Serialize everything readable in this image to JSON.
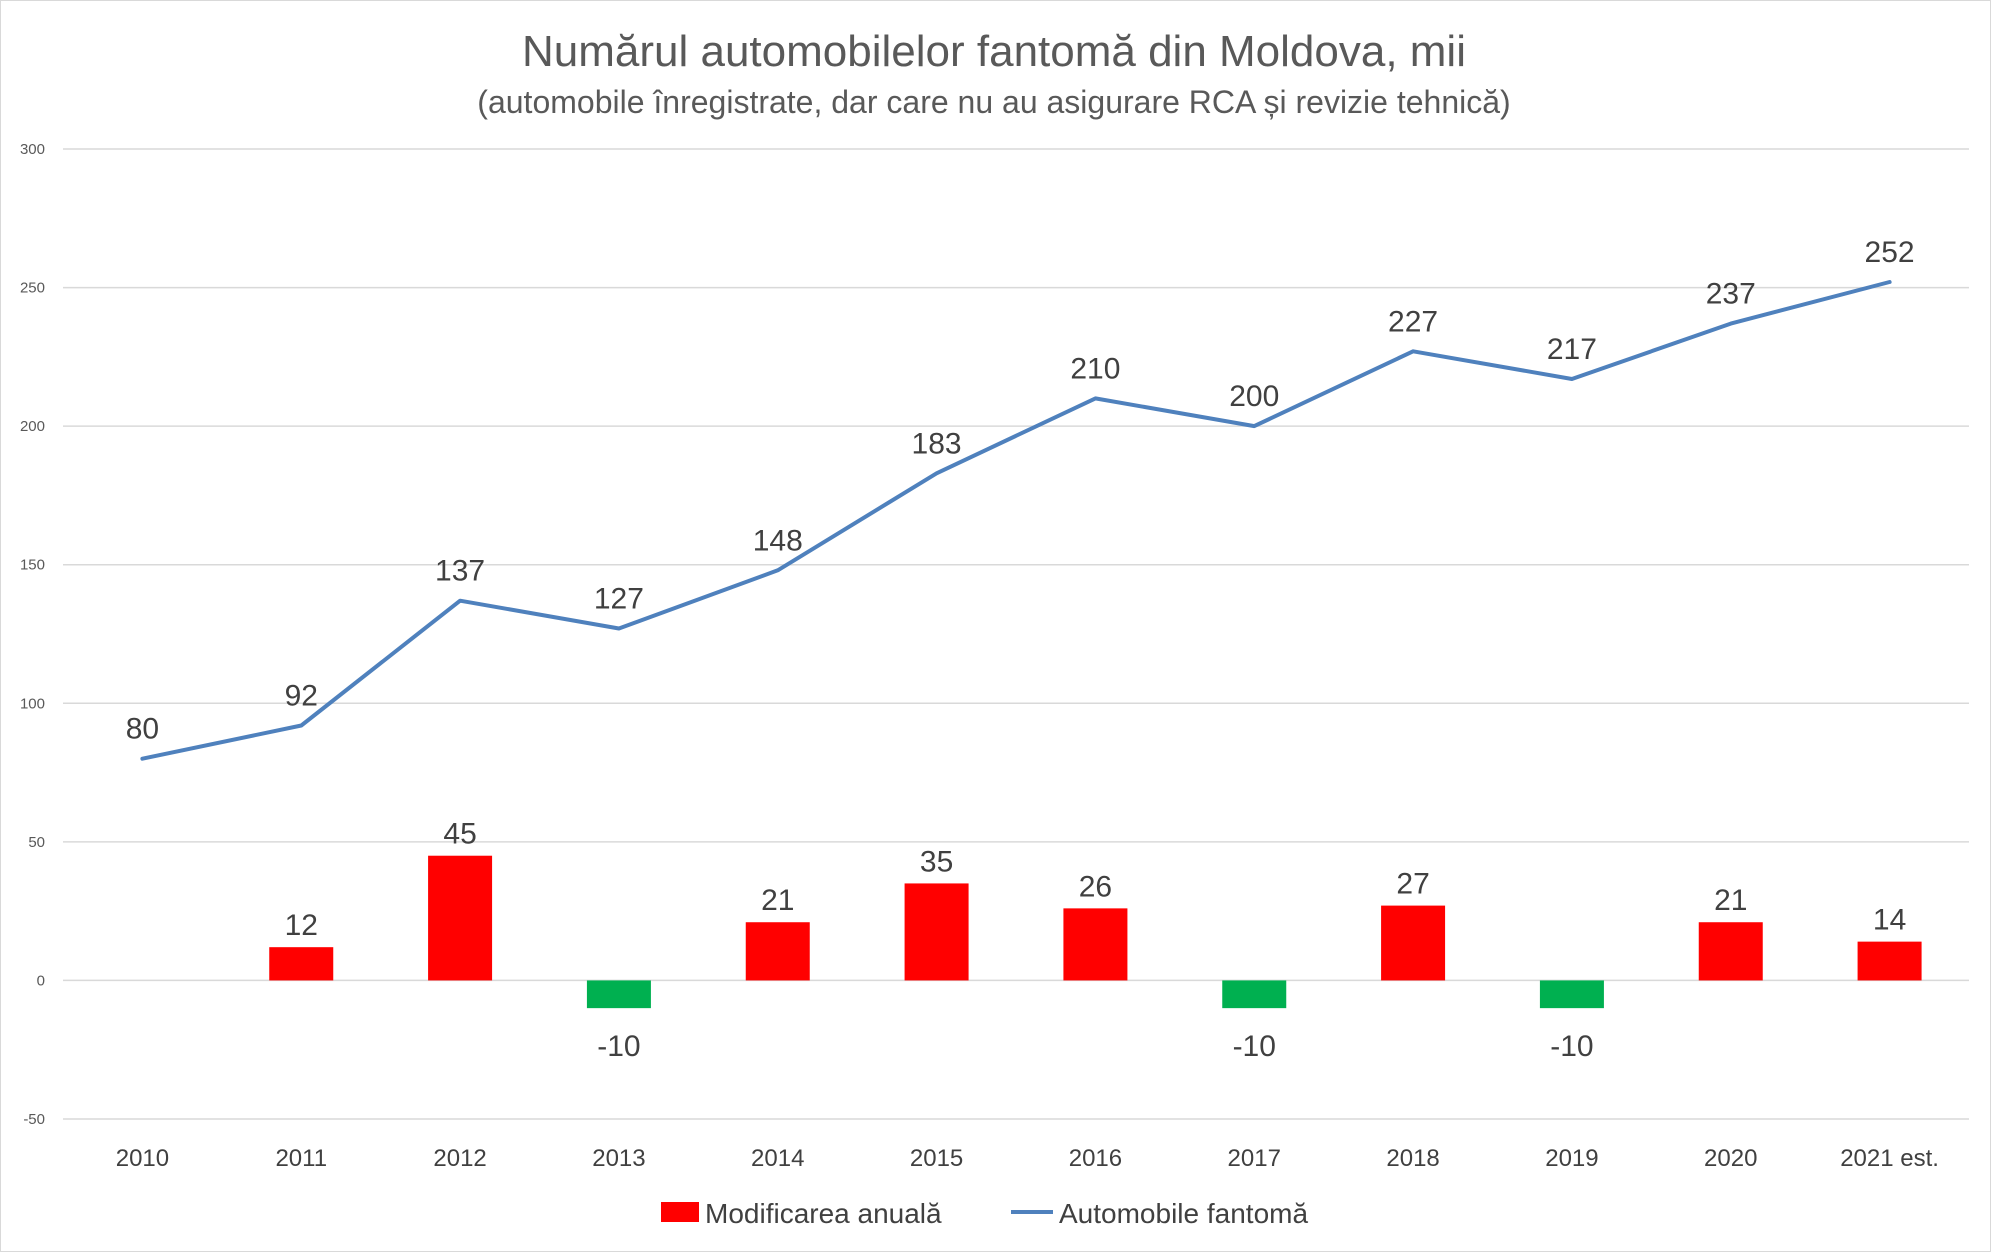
{
  "chart_data": {
    "type": "bar",
    "title": "Numărul automobilelor fantomă din Moldova, mii",
    "subtitle": "(automobile înregistrate, dar care nu au asigurare RCA și revizie tehnică)",
    "categories": [
      "2010",
      "2011",
      "2012",
      "2013",
      "2014",
      "2015",
      "2016",
      "2017",
      "2018",
      "2019",
      "2020",
      "2021 est."
    ],
    "ylim": [
      -50,
      300
    ],
    "yticks": [
      300,
      250,
      200,
      150,
      100,
      50,
      0,
      -50
    ],
    "grid": true,
    "legend_position": "bottom",
    "series": [
      {
        "name": "Modificarea anuală",
        "type": "bar",
        "values": [
          null,
          12,
          45,
          -10,
          21,
          35,
          26,
          -10,
          27,
          -10,
          21,
          14
        ],
        "color_positive": "#ff0000",
        "color_negative": "#00b050"
      },
      {
        "name": "Automobile fantomă",
        "type": "line",
        "values": [
          80,
          92,
          137,
          127,
          148,
          183,
          210,
          200,
          227,
          217,
          237,
          252
        ],
        "color": "#4f81bd"
      }
    ]
  }
}
